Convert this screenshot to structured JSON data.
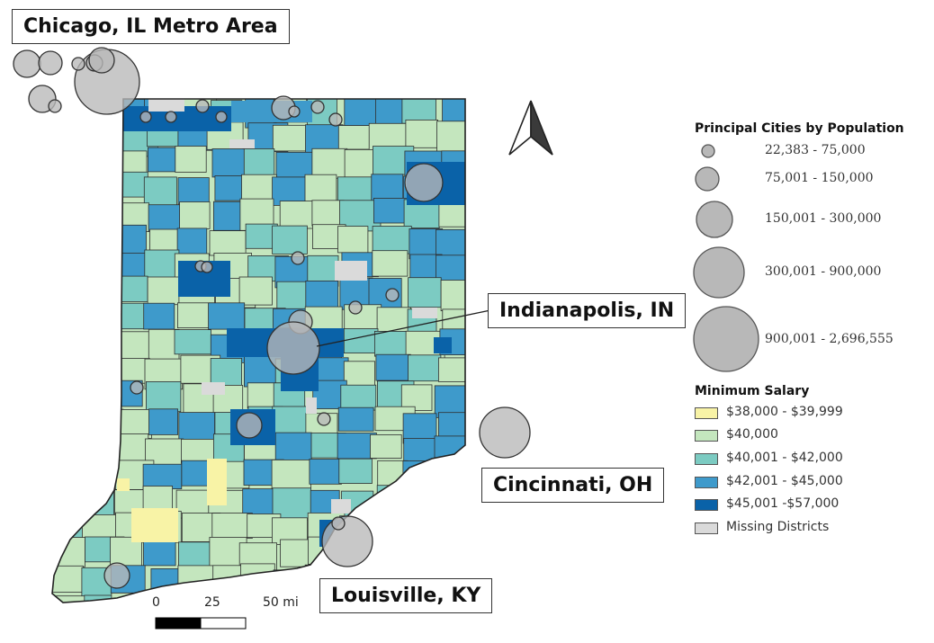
{
  "labels": {
    "chicago": "Chicago, IL Metro Area",
    "indianapolis": "Indianapolis, IN",
    "cincinnati": "Cincinnati, OH",
    "louisville": "Louisville, KY"
  },
  "legend": {
    "population_title": "Principal Cities by Population",
    "population_classes": [
      "22,383 - 75,000",
      "75,001 - 150,000",
      "150,001 - 300,000",
      "300,001 - 900,000",
      "900,001 - 2,696,555"
    ],
    "salary_title": "Minimum Salary",
    "salary_classes": [
      "$38,000 - $39,999",
      "$40,000",
      "$40,001 - $42,000",
      "$42,001 - $45,000",
      "$45,001 -$57,000",
      "Missing Districts"
    ]
  },
  "scale_bar": {
    "ticks": [
      "0",
      "25",
      "50 mi"
    ]
  },
  "colors": {
    "yellow": "#f8f3a6",
    "pale_green": "#c4e6be",
    "teal": "#7ccbc2",
    "mid_blue": "#3e9acb",
    "dark_blue": "#0a62a8",
    "missing": "#dadada",
    "city_fill": "#b8b8b8",
    "border": "#333333"
  }
}
